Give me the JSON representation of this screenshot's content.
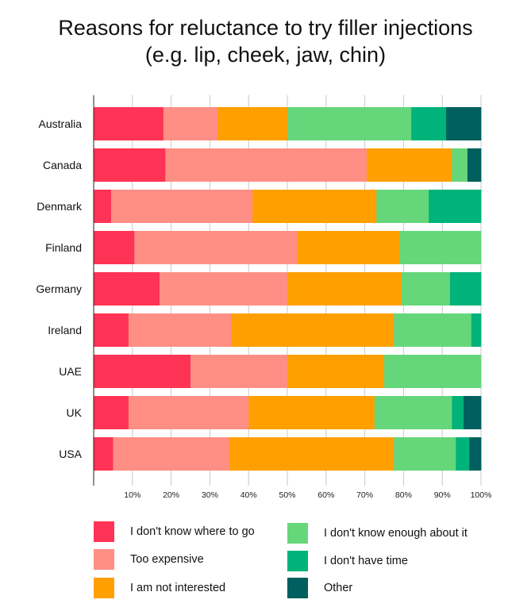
{
  "chart_data": {
    "type": "bar",
    "orientation": "horizontal",
    "stacked": true,
    "title_lines": [
      "Reasons for reluctance to try filler injections",
      "(e.g. lip, cheek, jaw, chin)"
    ],
    "categories": [
      "Australia",
      "Canada",
      "Denmark",
      "Finland",
      "Germany",
      "Ireland",
      "UAE",
      "UK",
      "USA"
    ],
    "series": [
      {
        "name": "I don't know where to go",
        "color": "#ff3355",
        "values": [
          18,
          18.5,
          4.5,
          10.5,
          17,
          9,
          25,
          9,
          5
        ]
      },
      {
        "name": "Too expensive",
        "color": "#ff8f85",
        "values": [
          14,
          52,
          36.5,
          42,
          33,
          26.5,
          25,
          31,
          30
        ]
      },
      {
        "name": "I am not interested",
        "color": "#ffa000",
        "values": [
          18,
          22,
          32,
          26.5,
          29.5,
          42,
          25,
          32.5,
          42.5
        ]
      },
      {
        "name": "I don't know enough about it",
        "color": "#66d67a",
        "values": [
          32,
          4,
          13.5,
          21,
          12.5,
          20,
          25,
          20,
          16
        ]
      },
      {
        "name": "I don't have time",
        "color": "#00b37a",
        "values": [
          9,
          0,
          13.5,
          0,
          8,
          2.5,
          0,
          3,
          3.5
        ]
      },
      {
        "name": "Other",
        "color": "#005f5f",
        "values": [
          9,
          3.5,
          0,
          0,
          0,
          0,
          0,
          4.5,
          3
        ]
      }
    ],
    "xlim": [
      0,
      100
    ],
    "xticks": [
      "10%",
      "20%",
      "30%",
      "40%",
      "50%",
      "60%",
      "70%",
      "80%",
      "90%",
      "100%"
    ],
    "grid": true,
    "legend_position": "bottom"
  }
}
